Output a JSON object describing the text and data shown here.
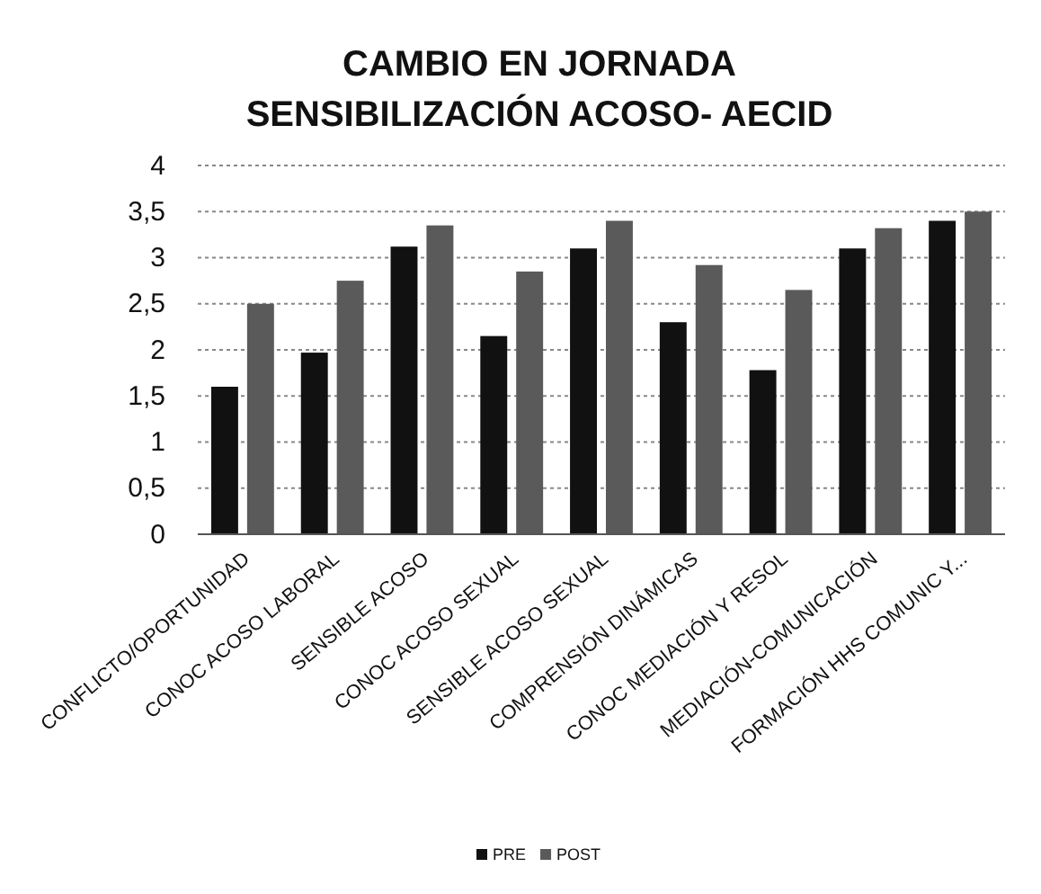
{
  "chart_data": {
    "type": "bar",
    "title": "CAMBIO EN JORNADA SENSIBILIZACIÓN ACOSO- AECID",
    "categories": [
      "CONFLICTO/OPORTUNIDAD",
      "CONOC ACOSO LABORAL",
      "SENSIBLE ACOSO",
      "CONOC ACOSO SEXUAL",
      "SENSIBLE ACOSO SEXUAL",
      "COMPRENSIÓN DINÁMICAS",
      "CONOC MEDIACIÓN Y RESOL",
      "MEDIACIÓN-COMUNICACIÓN",
      "FORMACIÓN HHS COMUNIC Y..."
    ],
    "series": [
      {
        "name": "PRE",
        "color": "#111111",
        "values": [
          1.6,
          1.97,
          3.12,
          2.15,
          3.1,
          2.3,
          1.78,
          3.1,
          3.4
        ]
      },
      {
        "name": "POST",
        "color": "#5a5a5a",
        "values": [
          2.5,
          2.75,
          3.35,
          2.85,
          3.4,
          2.92,
          2.65,
          3.32,
          3.5
        ]
      }
    ],
    "ylim": [
      0,
      4
    ],
    "yticks": [
      0,
      {
        "value": 0.5,
        "label": "0,5"
      },
      1,
      {
        "value": 1.5,
        "label": "1,5"
      },
      2,
      {
        "value": 2.5,
        "label": "2,5"
      },
      3,
      {
        "value": 3.5,
        "label": "3,5"
      },
      4
    ],
    "grid": "y",
    "legend": "bottom"
  }
}
